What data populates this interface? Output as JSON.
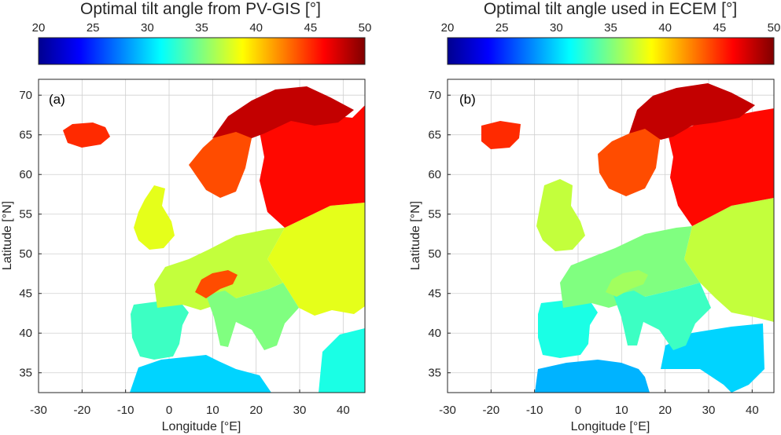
{
  "chart_data": [
    {
      "type": "heatmap",
      "panel_label": "(a)",
      "title": "Optimal tilt angle from PV-GIS [°]",
      "xlabel": "Longitude [°E]",
      "ylabel": "Latitude [°N]",
      "xlim": [
        -30,
        45
      ],
      "ylim": [
        32.5,
        72
      ],
      "xticks": [
        -30,
        -20,
        -10,
        0,
        10,
        20,
        30,
        40
      ],
      "yticks": [
        35,
        40,
        45,
        50,
        55,
        60,
        65,
        70
      ],
      "colorbar": {
        "min": 20,
        "max": 50,
        "ticks": [
          20,
          25,
          30,
          35,
          40,
          45,
          50
        ],
        "colormap": "jet"
      },
      "grid": true,
      "regions": [
        {
          "name": "Iceland",
          "value": 45
        },
        {
          "name": "Scandinavia north",
          "value": 48
        },
        {
          "name": "Scandinavia south",
          "value": 44
        },
        {
          "name": "Finland / NW Russia",
          "value": 46
        },
        {
          "name": "British Isles",
          "value": 38
        },
        {
          "name": "Central Europe",
          "value": 37
        },
        {
          "name": "Alps",
          "value": 44
        },
        {
          "name": "Iberia",
          "value": 33
        },
        {
          "name": "Italy / Balkans",
          "value": 35
        },
        {
          "name": "Eastern Europe",
          "value": 38
        },
        {
          "name": "Turkey",
          "value": 32
        },
        {
          "name": "North Africa",
          "value": 30
        }
      ]
    },
    {
      "type": "heatmap",
      "panel_label": "(b)",
      "title": "Optimal tilt angle used in ECEM [°]",
      "xlabel": "Longitude [°E]",
      "ylabel": "Latitude [°N]",
      "xlim": [
        -30,
        45
      ],
      "ylim": [
        32.5,
        72
      ],
      "xticks": [
        -30,
        -20,
        -10,
        0,
        10,
        20,
        30,
        40
      ],
      "yticks": [
        35,
        40,
        45,
        50,
        55,
        60,
        65,
        70
      ],
      "colorbar": {
        "min": 20,
        "max": 50,
        "ticks": [
          20,
          25,
          30,
          35,
          40,
          45,
          50
        ],
        "colormap": "jet"
      },
      "grid": true,
      "regions": [
        {
          "name": "Iceland",
          "value": 45
        },
        {
          "name": "Scandinavia north",
          "value": 48
        },
        {
          "name": "Scandinavia south",
          "value": 44
        },
        {
          "name": "Finland / NW Russia",
          "value": 46
        },
        {
          "name": "British Isles",
          "value": 37
        },
        {
          "name": "Central Europe",
          "value": 35
        },
        {
          "name": "Alps",
          "value": 36
        },
        {
          "name": "Iberia",
          "value": 32
        },
        {
          "name": "Italy / Balkans",
          "value": 33
        },
        {
          "name": "Eastern Europe",
          "value": 37
        },
        {
          "name": "Turkey",
          "value": 30
        },
        {
          "name": "North Africa",
          "value": 29
        }
      ]
    }
  ]
}
